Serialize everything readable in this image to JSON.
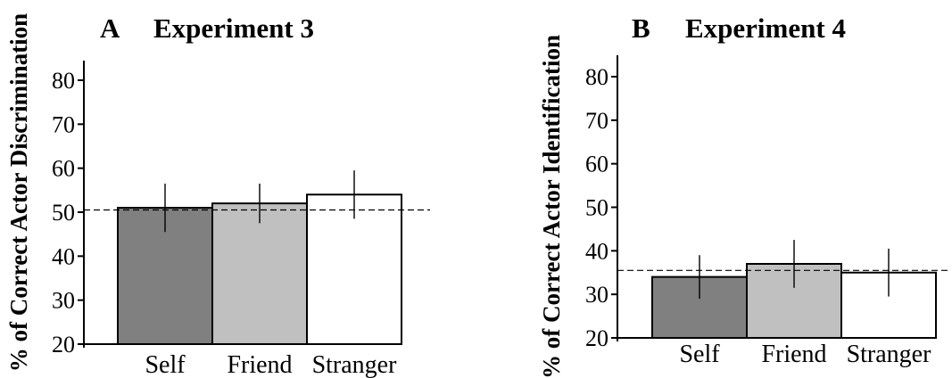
{
  "chart_data": [
    {
      "type": "bar",
      "panel": "A",
      "title": "Experiment 3",
      "ylabel": "% of Correct Actor Discrimination",
      "xlabel": "",
      "categories": [
        "Self",
        "Friend",
        "Stranger"
      ],
      "values": [
        51,
        52,
        54
      ],
      "errors": [
        5.5,
        4.5,
        5.5
      ],
      "reference_line": 50.5,
      "ylim": [
        20,
        80
      ],
      "yticks": [
        20,
        30,
        40,
        50,
        60,
        70,
        80
      ],
      "bar_colors": [
        "#808080",
        "#c0c0c0",
        "#ffffff"
      ],
      "grid": false
    },
    {
      "type": "bar",
      "panel": "B",
      "title": "Experiment 4",
      "ylabel": "% of Correct Actor Identification",
      "xlabel": "",
      "categories": [
        "Self",
        "Friend",
        "Stranger"
      ],
      "values": [
        34,
        37,
        35
      ],
      "errors": [
        5,
        5.5,
        5.5
      ],
      "reference_line": 35.5,
      "ylim": [
        20,
        80
      ],
      "yticks": [
        20,
        30,
        40,
        50,
        60,
        70,
        80
      ],
      "bar_colors": [
        "#808080",
        "#c0c0c0",
        "#ffffff"
      ],
      "grid": false
    }
  ]
}
